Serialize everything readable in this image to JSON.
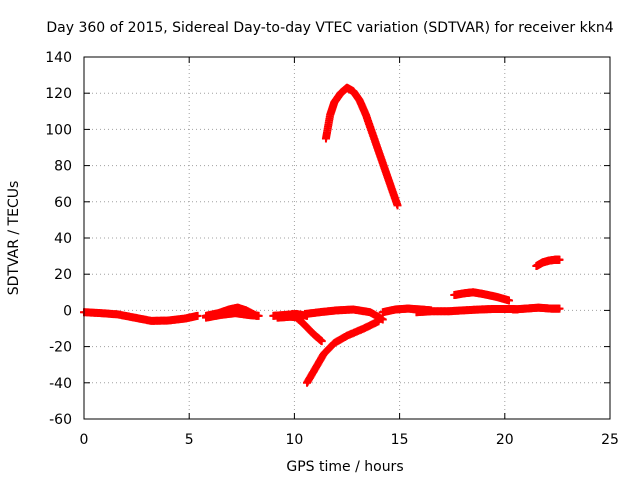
{
  "chart_data": {
    "type": "scatter",
    "title": "Day 360 of 2015, Sidereal Day-to-day VTEC variation (SDTVAR) for receiver kkn4",
    "xlabel": "GPS time / hours",
    "ylabel": "SDTVAR / TECUs",
    "xlim": [
      0,
      25
    ],
    "ylim": [
      -60,
      140
    ],
    "xticks": [
      0,
      5,
      10,
      15,
      20,
      25
    ],
    "yticks": [
      -60,
      -40,
      -20,
      0,
      20,
      40,
      60,
      80,
      100,
      120,
      140
    ],
    "grid": true,
    "marker": "+",
    "color": "#ff0000",
    "series": [
      {
        "values": [
          [
            0,
            -1
          ],
          [
            0.8,
            -1.5
          ],
          [
            1.6,
            -2.2
          ],
          [
            2.4,
            -4
          ],
          [
            3.2,
            -5.8
          ],
          [
            4.0,
            -5.6
          ],
          [
            4.8,
            -4.5
          ],
          [
            5.4,
            -3
          ]
        ]
      },
      {
        "values": [
          [
            5.8,
            -3
          ],
          [
            6.4,
            -1.5
          ],
          [
            6.9,
            0.5
          ],
          [
            7.3,
            1.5
          ],
          [
            7.7,
            0
          ],
          [
            8.2,
            -3
          ]
        ]
      },
      {
        "values": [
          [
            5.8,
            -4
          ],
          [
            6.5,
            -2.5
          ],
          [
            7.2,
            -1.5
          ],
          [
            7.8,
            -2.5
          ],
          [
            8.3,
            -3
          ]
        ]
      },
      {
        "values": [
          [
            9.0,
            -3
          ],
          [
            9.6,
            -2.5
          ],
          [
            10.1,
            -2
          ],
          [
            10.6,
            -3
          ]
        ]
      },
      {
        "values": [
          [
            9.2,
            -4
          ],
          [
            9.8,
            -3.5
          ],
          [
            10.4,
            -4
          ]
        ]
      },
      {
        "values": [
          [
            9.9,
            -2
          ],
          [
            10.4,
            -7
          ],
          [
            10.9,
            -13
          ],
          [
            11.3,
            -17
          ]
        ]
      },
      {
        "values": [
          [
            10.6,
            -40
          ],
          [
            11.0,
            -32
          ],
          [
            11.4,
            -24
          ],
          [
            11.9,
            -18
          ],
          [
            12.5,
            -14
          ],
          [
            13.3,
            -10
          ],
          [
            14.0,
            -6
          ]
        ]
      },
      {
        "values": [
          [
            10.5,
            -2
          ],
          [
            11.2,
            -1
          ],
          [
            12.0,
            0
          ],
          [
            12.8,
            0.5
          ],
          [
            13.6,
            -1
          ],
          [
            14.2,
            -5
          ]
        ]
      },
      {
        "values": [
          [
            11.5,
            95
          ],
          [
            11.7,
            108
          ],
          [
            11.9,
            115
          ],
          [
            12.2,
            120
          ],
          [
            12.5,
            123
          ],
          [
            12.8,
            121
          ],
          [
            13.1,
            116
          ],
          [
            13.4,
            108
          ],
          [
            13.7,
            98
          ],
          [
            14.0,
            88
          ],
          [
            14.3,
            78
          ],
          [
            14.6,
            68
          ],
          [
            14.9,
            58
          ]
        ]
      },
      {
        "values": [
          [
            14.2,
            -1
          ],
          [
            14.8,
            0.5
          ],
          [
            15.4,
            1
          ],
          [
            16.0,
            0.5
          ],
          [
            16.5,
            0
          ]
        ]
      },
      {
        "values": [
          [
            15.8,
            -1
          ],
          [
            16.5,
            -0.5
          ],
          [
            17.3,
            -0.5
          ],
          [
            18.0,
            0
          ],
          [
            18.8,
            0.5
          ],
          [
            19.5,
            0.8
          ],
          [
            20.3,
            0.8
          ],
          [
            20.6,
            0.5
          ]
        ]
      },
      {
        "values": [
          [
            17.6,
            8.5
          ],
          [
            18.1,
            9.5
          ],
          [
            18.5,
            10
          ],
          [
            19.0,
            9
          ],
          [
            19.6,
            7.5
          ],
          [
            20.2,
            5.5
          ]
        ]
      },
      {
        "values": [
          [
            20.4,
            0.5
          ],
          [
            21.0,
            1
          ],
          [
            21.6,
            1.5
          ],
          [
            22.2,
            1
          ],
          [
            22.6,
            1
          ]
        ]
      },
      {
        "values": [
          [
            21.5,
            24.5
          ],
          [
            21.8,
            26.5
          ],
          [
            22.1,
            27.5
          ],
          [
            22.4,
            28
          ],
          [
            22.6,
            28
          ]
        ]
      }
    ]
  }
}
